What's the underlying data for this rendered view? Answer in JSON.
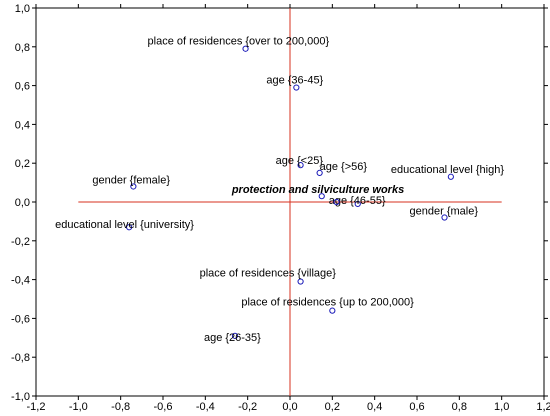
{
  "chart_data": {
    "type": "scatter",
    "title": "",
    "xlabel": "",
    "ylabel": "",
    "xlim": [
      -1.2,
      1.2
    ],
    "ylim": [
      -1.0,
      1.0
    ],
    "x_ticks": [
      "-1,2",
      "-1,0",
      "-0,8",
      "-0,6",
      "-0,4",
      "-0,2",
      "0,0",
      "0,2",
      "0,4",
      "0,6",
      "0,8",
      "1,0",
      "1,2"
    ],
    "x_tick_values": [
      -1.2,
      -1.0,
      -0.8,
      -0.6,
      -0.4,
      -0.2,
      0.0,
      0.2,
      0.4,
      0.6,
      0.8,
      1.0,
      1.2
    ],
    "y_ticks": [
      "1,0",
      "0,8",
      "0,6",
      "0,4",
      "0,2",
      "0,0",
      "-0,2",
      "-0,4",
      "-0,6",
      "-0,8",
      "-1,0"
    ],
    "y_tick_values": [
      1.0,
      0.8,
      0.6,
      0.4,
      0.2,
      0.0,
      -0.2,
      -0.4,
      -0.6,
      -0.8,
      -1.0
    ],
    "grid": false,
    "reference_lines": {
      "horizontal_y": 0.0,
      "horizontal_x_range": [
        -1.0,
        1.0
      ],
      "vertical_x": 0.0,
      "vertical_y_range": [
        -1.0,
        1.0
      ],
      "center_label": "protection and silviculture works"
    },
    "points": [
      {
        "label": "place of residences {over to 200,000}",
        "x": -0.21,
        "y": 0.79
      },
      {
        "label": "age {36-45}",
        "x": 0.03,
        "y": 0.59
      },
      {
        "label": "age {<25}",
        "x": 0.05,
        "y": 0.19
      },
      {
        "label": "age {>56}",
        "x": 0.14,
        "y": 0.15
      },
      {
        "label": "educational level {high}",
        "x": 0.76,
        "y": 0.13
      },
      {
        "label": "gender {female}",
        "x": -0.74,
        "y": 0.08
      },
      {
        "label": "age {46-55}",
        "x": 0.32,
        "y": -0.01
      },
      {
        "label": "",
        "x": 0.15,
        "y": 0.03
      },
      {
        "label": "",
        "x": 0.22,
        "y": 0.0
      },
      {
        "label": "gender {male}",
        "x": 0.73,
        "y": -0.08
      },
      {
        "label": "educational level {university}",
        "x": -0.76,
        "y": -0.13
      },
      {
        "label": "place of residences {village}",
        "x": 0.05,
        "y": -0.41
      },
      {
        "label": "place of residences {up to 200,000}",
        "x": 0.2,
        "y": -0.56
      },
      {
        "label": "age {26-35}",
        "x": -0.26,
        "y": -0.69
      }
    ],
    "marker_color": "#1a1ab8",
    "reference_line_color": "#d7301f"
  }
}
